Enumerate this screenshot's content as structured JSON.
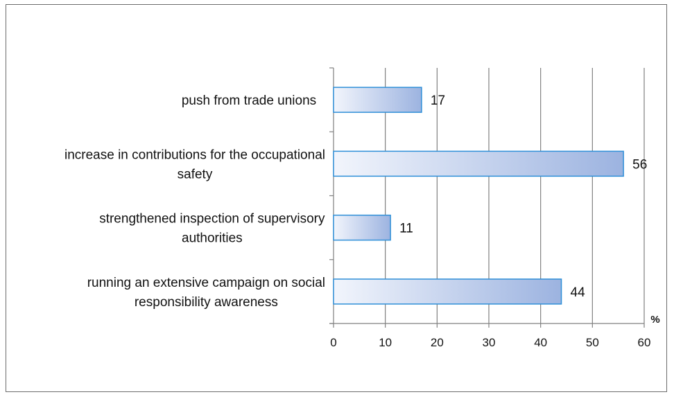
{
  "chart_data": {
    "type": "bar",
    "orientation": "horizontal",
    "categories": [
      "push from trade unions",
      "increase in contributions for the occupational safety",
      "strengthened inspection of supervisory authorities",
      "running an extensive campaign on social responsibility awareness"
    ],
    "category_lines": [
      [
        "push from trade unions"
      ],
      [
        "increase in contributions for the occupational",
        "safety"
      ],
      [
        "strengthened inspection of supervisory",
        "authorities"
      ],
      [
        "running an extensive campaign on social",
        "responsibility awareness"
      ]
    ],
    "values": [
      17,
      56,
      11,
      44
    ],
    "value_labels": [
      "17",
      "56",
      "11",
      "44"
    ],
    "xlim": [
      0,
      60
    ],
    "x_ticks": [
      0,
      10,
      20,
      30,
      40,
      50,
      60
    ],
    "x_tick_labels": [
      "0",
      "10",
      "20",
      "30",
      "40",
      "50",
      "60"
    ],
    "unit": "%",
    "grid": true,
    "bar_colors": {
      "fill_start": "#f2f5fc",
      "fill_end": "#9cb3e0",
      "stroke": "#2e8fd8"
    },
    "grid_color": "#808080"
  }
}
